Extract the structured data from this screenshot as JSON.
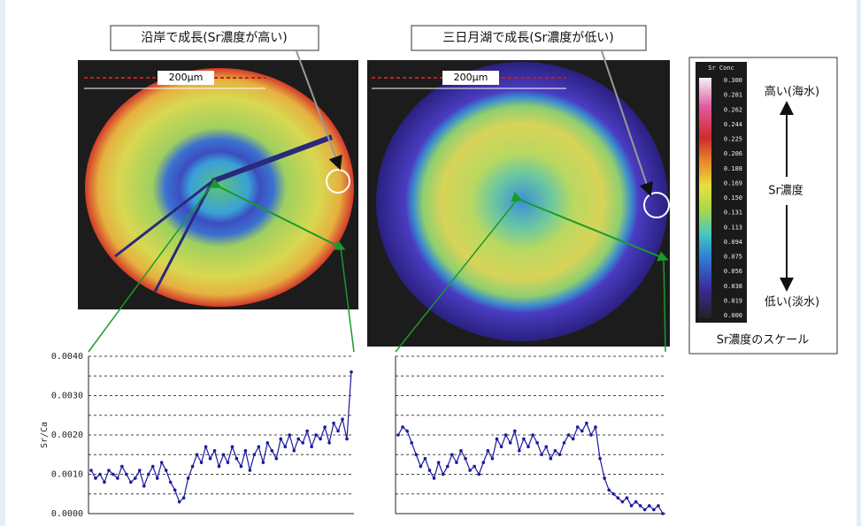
{
  "images": [
    {
      "caption": "沿岸で成長(Sr濃度が高い)",
      "scale": "200μm"
    },
    {
      "caption": "三日月湖で成長(Sr濃度が低い)",
      "scale": "200μm"
    }
  ],
  "scale": {
    "title": "Sr Conc",
    "labels": [
      "0.300",
      "0.281",
      "0.262",
      "0.244",
      "0.225",
      "0.206",
      "0.188",
      "0.169",
      "0.150",
      "0.131",
      "0.113",
      "0.094",
      "0.075",
      "0.056",
      "0.038",
      "0.019",
      "0.000"
    ],
    "high": "高い(海水)",
    "middle": "Sr濃度",
    "low": "低い(淡水)",
    "caption": "Sr濃度のスケール"
  },
  "chart_data": [
    {
      "type": "line",
      "ylabel": "Sr/Ca",
      "ylim": [
        0,
        0.004
      ],
      "yticks": [
        {
          "value": 0,
          "label": "0.0000"
        },
        {
          "value": 0.001,
          "label": "0.0010"
        },
        {
          "value": 0.002,
          "label": "0.0020"
        },
        {
          "value": 0.003,
          "label": "0.0030"
        },
        {
          "value": 0.004,
          "label": "0.0040"
        }
      ],
      "minor_gridlines": [
        0.0005,
        0.0015,
        0.0025,
        0.0035
      ],
      "series": [
        {
          "color": "#1a1aa0",
          "values": [
            0.0011,
            0.0009,
            0.001,
            0.0008,
            0.0011,
            0.001,
            0.0009,
            0.0012,
            0.001,
            0.0008,
            0.0009,
            0.0011,
            0.0007,
            0.001,
            0.0012,
            0.0009,
            0.0013,
            0.0011,
            0.0008,
            0.0006,
            0.0003,
            0.0004,
            0.0009,
            0.0012,
            0.0015,
            0.0013,
            0.0017,
            0.0014,
            0.0016,
            0.0012,
            0.0015,
            0.0013,
            0.0017,
            0.0014,
            0.0012,
            0.0016,
            0.0011,
            0.0015,
            0.0017,
            0.0013,
            0.0018,
            0.0016,
            0.0014,
            0.0019,
            0.0017,
            0.002,
            0.0016,
            0.0019,
            0.0018,
            0.0021,
            0.0017,
            0.002,
            0.0019,
            0.0022,
            0.0018,
            0.0023,
            0.0021,
            0.0024,
            0.0019,
            0.0036
          ]
        }
      ]
    },
    {
      "type": "line",
      "ylim": [
        0,
        0.004
      ],
      "minor_gridlines": [
        0.0005,
        0.001,
        0.0015,
        0.002,
        0.0025,
        0.003,
        0.0035,
        0.004
      ],
      "series": [
        {
          "color": "#1a1aa0",
          "values": [
            0.002,
            0.0022,
            0.0021,
            0.0018,
            0.0015,
            0.0012,
            0.0014,
            0.0011,
            0.0009,
            0.0013,
            0.001,
            0.0012,
            0.0015,
            0.0013,
            0.0016,
            0.0014,
            0.0011,
            0.0012,
            0.001,
            0.0013,
            0.0016,
            0.0014,
            0.0019,
            0.0017,
            0.002,
            0.0018,
            0.0021,
            0.0016,
            0.0019,
            0.0017,
            0.002,
            0.0018,
            0.0015,
            0.0017,
            0.0014,
            0.0016,
            0.0015,
            0.0018,
            0.002,
            0.0019,
            0.0022,
            0.0021,
            0.0023,
            0.002,
            0.0022,
            0.0014,
            0.0009,
            0.0006,
            0.0005,
            0.0004,
            0.0003,
            0.0004,
            0.0002,
            0.0003,
            0.0002,
            0.0001,
            0.0002,
            0.0001,
            0.0002,
            0.0
          ]
        }
      ]
    }
  ]
}
